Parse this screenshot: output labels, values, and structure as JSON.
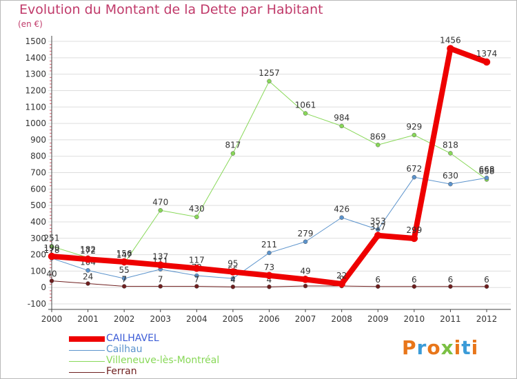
{
  "title": "Evolution du Montant de la Dette par Habitant",
  "unit": "(en €)",
  "logo": "Proxiti",
  "colors": {
    "title": "#c03a6a",
    "axis": "#444444",
    "grid": "#dddddd"
  },
  "chart_data": {
    "type": "line",
    "title": "Evolution du Montant de la Dette par Habitant",
    "subtitle": "(en €)",
    "x": [
      "2000",
      "2001",
      "2002",
      "2003",
      "2004",
      "2005",
      "2006",
      "2007",
      "2008",
      "2009",
      "2010",
      "2011",
      "2012"
    ],
    "yticks": [
      -100,
      0,
      100,
      200,
      300,
      400,
      500,
      600,
      700,
      800,
      900,
      1000,
      1100,
      1200,
      1300,
      1400,
      1500
    ],
    "ylim": [
      -100,
      1550
    ],
    "grid": "horizontal",
    "legend_position": "bottom-left",
    "series": [
      {
        "name": "Villeneuve-lès-Montréal",
        "color": "#88d858",
        "width": 1,
        "labels_above": true,
        "values": [
          251,
          182,
          147,
          470,
          430,
          817,
          1257,
          1061,
          984,
          869,
          929,
          818,
          658
        ],
        "labels": [
          "251",
          "182",
          "147",
          "470",
          "430",
          "817",
          "1257",
          "1061",
          "984",
          "869",
          "929",
          "818",
          "658"
        ]
      },
      {
        "name": "Cailhau",
        "color": "#5b93cc",
        "width": 1,
        "labels_above": true,
        "values": [
          178,
          104,
          55,
          111,
          72,
          55,
          211,
          279,
          426,
          353,
          672,
          630,
          668
        ],
        "labels": [
          "178",
          "104",
          "55",
          "111",
          "72",
          "55",
          "211",
          "279",
          "426",
          "353",
          "672",
          "630",
          "668"
        ]
      },
      {
        "name": "Ferran",
        "color": "#6e1e1e",
        "width": 1,
        "labels_above": false,
        "values": [
          40,
          24,
          7,
          7,
          7,
          4,
          4,
          9,
          9,
          6,
          6,
          6,
          6
        ],
        "labels": [
          "40",
          "24",
          "7",
          "7",
          "7",
          "4",
          "4",
          "9",
          "9",
          "6",
          "6",
          "6",
          "6"
        ]
      },
      {
        "name": "CAILHAVEL",
        "color": "#ee0000",
        "width": 8,
        "labels_above": true,
        "values": [
          190,
          172,
          156,
          137,
          117,
          95,
          73,
          49,
          22,
          317,
          299,
          1456,
          1374
        ],
        "labels": [
          "190",
          "172",
          "156",
          "137",
          "117",
          "95",
          "73",
          "49",
          "22",
          "317",
          "299",
          "1456",
          "1374"
        ]
      }
    ],
    "legend": [
      {
        "name": "CAILHAVEL",
        "color": "#ee0000",
        "width": 8
      },
      {
        "name": "Cailhau",
        "color": "#5b93cc",
        "width": 1
      },
      {
        "name": "Villeneuve-lès-Montréal",
        "color": "#88d858",
        "width": 1
      },
      {
        "name": "Ferran",
        "color": "#6e1e1e",
        "width": 1
      }
    ]
  }
}
